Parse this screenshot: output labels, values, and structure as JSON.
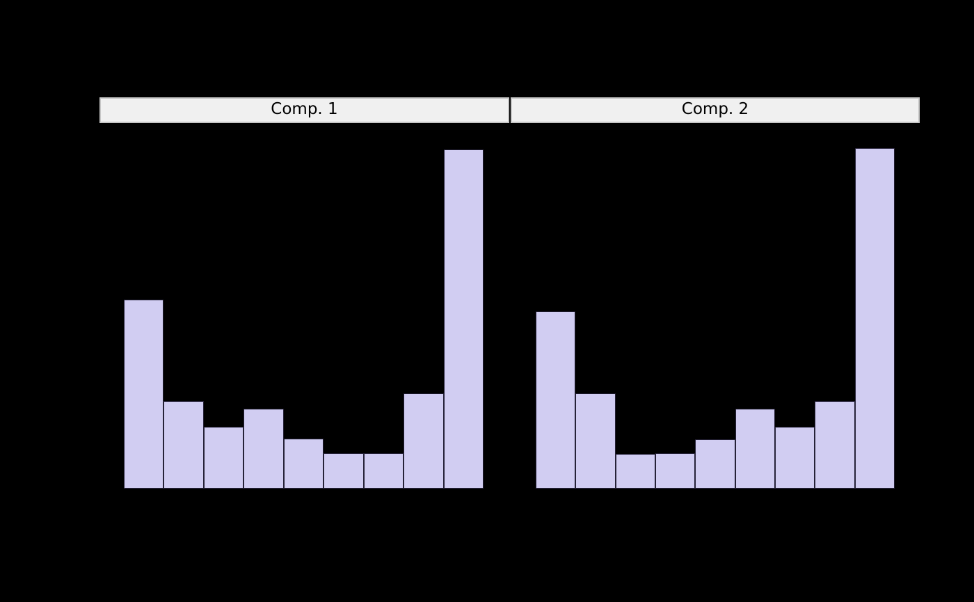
{
  "figure": {
    "background": "#000000"
  },
  "chart_data": {
    "type": "bar",
    "subtype": "faceted_histogram",
    "title": "",
    "xlabel": "",
    "ylabel": "",
    "facets": [
      "Comp. 1",
      "Comp. 2"
    ],
    "n_bins": 9,
    "series": [
      {
        "name": "Comp. 1",
        "values": [
          272,
          126,
          89,
          115,
          72,
          51,
          51,
          137,
          488
        ]
      },
      {
        "name": "Comp. 2",
        "values": [
          255,
          137,
          50,
          51,
          71,
          115,
          89,
          126,
          490
        ]
      }
    ],
    "value_units": "pixel-height (relative counts; axis tick labels not visible against black background)",
    "ylim": [
      0,
      526
    ],
    "legend": null,
    "grid": false,
    "colors": {
      "figure_background": "#000000",
      "bar_fill": "#d1cdf2",
      "bar_edge": "#262238",
      "strip_background": "#f0f0f0",
      "strip_border": "#c6c6c6",
      "strip_text": "#000000"
    }
  }
}
